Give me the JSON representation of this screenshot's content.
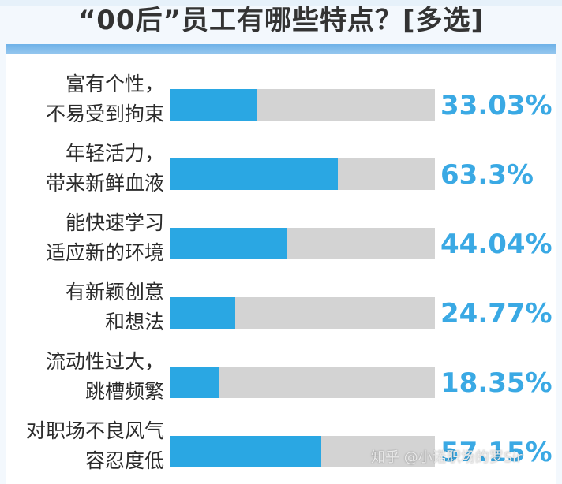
{
  "chart_data": {
    "type": "bar",
    "orientation": "horizontal",
    "title": "“00后”员工有哪些特点？[多选]",
    "categories": [
      [
        "富有个性，",
        "不易受到拘束"
      ],
      [
        "年轻活力，",
        "带来新鲜血液"
      ],
      [
        "能快速学习",
        "适应新的环境"
      ],
      [
        "有新颖创意",
        "和想法"
      ],
      [
        "流动性过大，",
        "跳槽频繁"
      ],
      [
        "对职场不良风气",
        "容忍度低"
      ]
    ],
    "values": [
      33.03,
      63.3,
      44.04,
      24.77,
      18.35,
      57.15
    ],
    "value_labels": [
      "33.03%",
      "63.3%",
      "44.04%",
      "24.77%",
      "18.35%",
      "57.15%"
    ],
    "xlim": [
      0,
      100
    ],
    "grid": false,
    "legend": "none"
  },
  "colors": {
    "bar_fill": "#2aa7e3",
    "bar_track": "#d3d3d3",
    "value_text": "#3aa9e4",
    "accent_band": "#6fb2e8"
  },
  "watermark": "知乎 @小诺职场的罗Sir"
}
